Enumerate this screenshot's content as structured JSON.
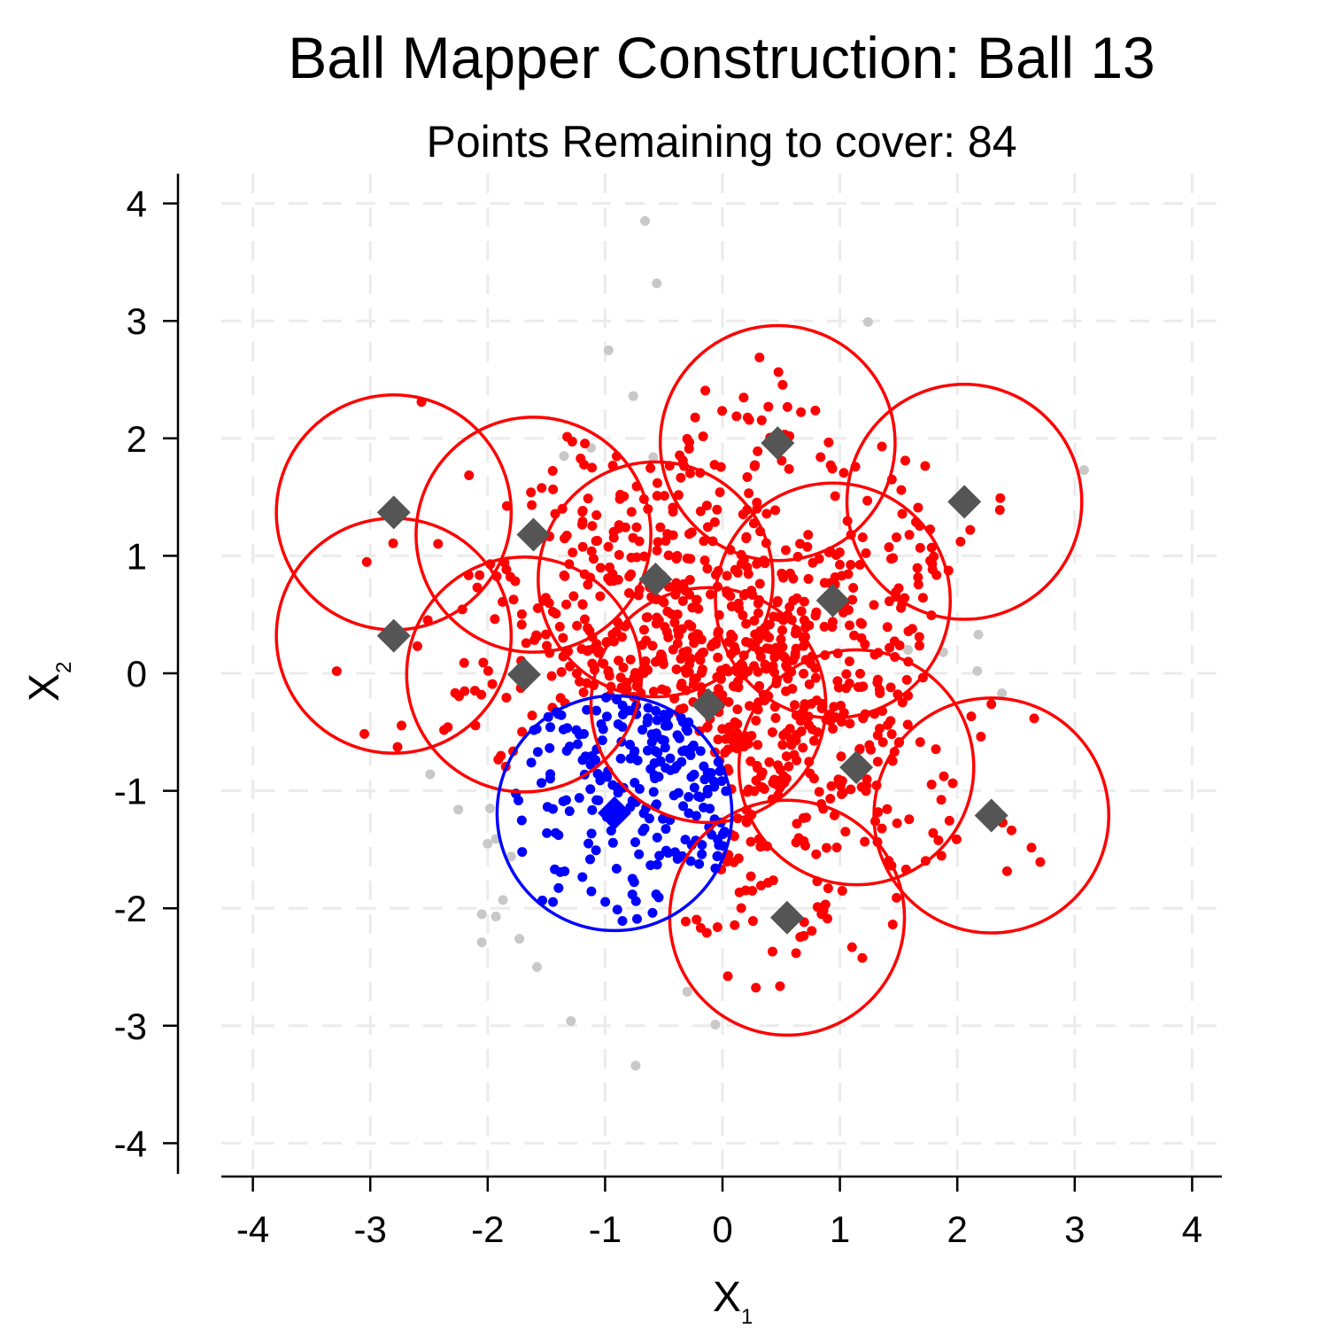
{
  "chart_data": {
    "type": "scatter",
    "title": "Ball Mapper Construction: Ball 13",
    "subtitle": "Points Remaining to cover: 84",
    "xlabel": "X",
    "xlabel_sub": "1",
    "ylabel": "X",
    "ylabel_sub": "2",
    "xlim": [
      -4.3,
      4.3
    ],
    "ylim": [
      -4.3,
      4.3
    ],
    "xticks": [
      "-4",
      "-3",
      "-2",
      "-1",
      "0",
      "1",
      "2",
      "3",
      "4"
    ],
    "yticks": [
      "-4",
      "-3",
      "-2",
      "-1",
      "0",
      "1",
      "2",
      "3",
      "4"
    ],
    "grid": true,
    "ball_radius": 1.0,
    "colors": {
      "covered": "#ff0000",
      "current": "#0000ff",
      "uncovered": "#c8c8c8",
      "center": "#555555",
      "grid": "#ebebeb"
    },
    "balls": [
      {
        "x": 0.47,
        "y": 1.96,
        "state": "covered"
      },
      {
        "x": 2.06,
        "y": 1.46,
        "state": "covered"
      },
      {
        "x": -2.8,
        "y": 1.37,
        "state": "covered"
      },
      {
        "x": -1.61,
        "y": 1.18,
        "state": "covered"
      },
      {
        "x": -0.57,
        "y": 0.8,
        "state": "covered"
      },
      {
        "x": 0.94,
        "y": 0.62,
        "state": "covered"
      },
      {
        "x": -2.8,
        "y": 0.32,
        "state": "covered"
      },
      {
        "x": -1.69,
        "y": -0.01,
        "state": "covered"
      },
      {
        "x": -0.12,
        "y": -0.27,
        "state": "covered"
      },
      {
        "x": 1.14,
        "y": -0.8,
        "state": "covered"
      },
      {
        "x": 2.29,
        "y": -1.21,
        "state": "covered"
      },
      {
        "x": 0.55,
        "y": -2.08,
        "state": "covered"
      },
      {
        "x": -0.92,
        "y": -1.19,
        "state": "current"
      }
    ],
    "uncovered_points": [
      [
        -0.66,
        3.85
      ],
      [
        -0.56,
        3.32
      ],
      [
        1.24,
        2.99
      ],
      [
        -0.97,
        2.75
      ],
      [
        -0.76,
        2.36
      ],
      [
        3.08,
        1.73
      ],
      [
        2.18,
        0.33
      ],
      [
        2.17,
        0.02
      ],
      [
        2.38,
        -0.17
      ],
      [
        1.88,
        0.18
      ],
      [
        -2.49,
        -0.86
      ],
      [
        -2.25,
        -1.16
      ],
      [
        -1.98,
        -1.15
      ],
      [
        -2.0,
        -1.45
      ],
      [
        -1.93,
        -1.41
      ],
      [
        -1.8,
        -1.56
      ],
      [
        -2.05,
        -2.05
      ],
      [
        -1.93,
        -2.07
      ],
      [
        -1.87,
        -1.93
      ],
      [
        -2.05,
        -2.29
      ],
      [
        -1.73,
        -2.26
      ],
      [
        -1.58,
        -2.5
      ],
      [
        -1.29,
        -2.96
      ],
      [
        -0.74,
        -3.34
      ],
      [
        -0.06,
        -2.99
      ],
      [
        -0.3,
        -2.71
      ],
      [
        -1.35,
        1.85
      ],
      [
        -0.59,
        1.84
      ],
      [
        -1.12,
        1.92
      ],
      [
        1.58,
        0.2
      ]
    ],
    "seed": 13
  }
}
